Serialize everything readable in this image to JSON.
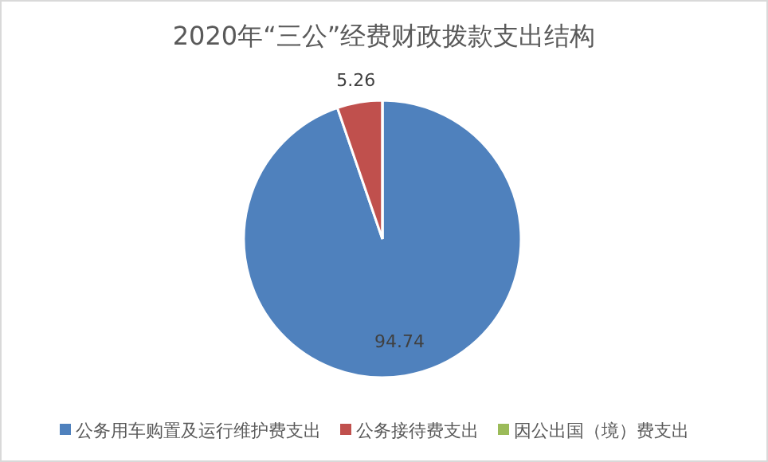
{
  "chart_data": {
    "type": "pie",
    "title": "2020年“三公”经费财政拨款支出结构",
    "categories": [
      "公务用车购置及运行维护费支出",
      "公务接待费支出",
      "因公出国（境）费支出"
    ],
    "values": [
      94.74,
      5.26,
      0
    ],
    "colors": [
      "#4f81bd",
      "#c0504d",
      "#9bbb59"
    ],
    "value_labels": [
      "94.74",
      "5.26",
      null
    ],
    "legend": "bottom"
  }
}
